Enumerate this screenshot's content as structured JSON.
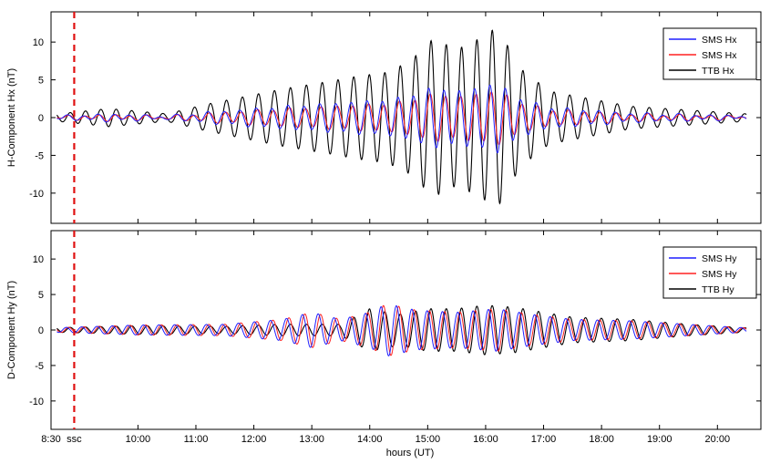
{
  "chart_data": [
    {
      "type": "line",
      "ylabel": "H-Component Hx (nT)",
      "xlabel": "",
      "xlim": [
        8.5,
        20.75
      ],
      "ylim": [
        -14,
        14
      ],
      "yticks": [
        10,
        5,
        0,
        -5,
        -10
      ],
      "grid": false,
      "legend": "top-right",
      "ssc_time": 8.9,
      "series": [
        {
          "name": "SMS Hx",
          "color": "#1f1fff",
          "scale": 0.38,
          "phase": 0.15
        },
        {
          "name": "SMS Hx",
          "color": "#ff2020",
          "scale": 0.3,
          "phase": 0.05
        },
        {
          "name": "TTB Hx",
          "color": "#000000",
          "scale": 1.0,
          "phase": 0.0
        }
      ],
      "envelope": [
        [
          8.5,
          0.4
        ],
        [
          9.5,
          1.2
        ],
        [
          10.5,
          0.5
        ],
        [
          11.2,
          1.8
        ],
        [
          12.5,
          3.8
        ],
        [
          13.3,
          4.8
        ],
        [
          13.8,
          5.5
        ],
        [
          14.3,
          6.0
        ],
        [
          14.7,
          7.5
        ],
        [
          15.1,
          10.5
        ],
        [
          15.5,
          9.0
        ],
        [
          15.9,
          10.5
        ],
        [
          16.2,
          12.0
        ],
        [
          16.6,
          6.5
        ],
        [
          17.1,
          3.5
        ],
        [
          17.8,
          2.5
        ],
        [
          18.5,
          1.5
        ],
        [
          19.5,
          1.0
        ],
        [
          20.5,
          0.5
        ]
      ]
    },
    {
      "type": "line",
      "ylabel": "D-Component Hy (nT)",
      "xlabel": "hours (UT)",
      "xlim": [
        8.5,
        20.75
      ],
      "ylim": [
        -14,
        14
      ],
      "yticks": [
        10,
        5,
        0,
        -5,
        -10
      ],
      "xticks": [
        {
          "value": 8.5,
          "label": "8:30"
        },
        {
          "value": 8.9,
          "label": "ssc"
        },
        {
          "value": 10,
          "label": "10:00"
        },
        {
          "value": 11,
          "label": "11:00"
        },
        {
          "value": 12,
          "label": "12:00"
        },
        {
          "value": 13,
          "label": "13:00"
        },
        {
          "value": 14,
          "label": "14:00"
        },
        {
          "value": 15,
          "label": "15:00"
        },
        {
          "value": 16,
          "label": "16:00"
        },
        {
          "value": 17,
          "label": "17:00"
        },
        {
          "value": 18,
          "label": "18:00"
        },
        {
          "value": 19,
          "label": "19:00"
        },
        {
          "value": 20,
          "label": "20:00"
        }
      ],
      "grid": false,
      "legend": "top-right",
      "ssc_time": 8.9,
      "series": [
        {
          "name": "SMS Hy",
          "color": "#1f1fff",
          "scale": 1.0,
          "phase": 0.25
        },
        {
          "name": "SMS Hy",
          "color": "#ff2020",
          "scale": 1.0,
          "phase": 0.1
        },
        {
          "name": "TTB Hy",
          "color": "#000000",
          "scale": 1.0,
          "phase": 0.0
        }
      ],
      "envelope_sms": [
        [
          8.5,
          0.3
        ],
        [
          10,
          0.7
        ],
        [
          11.5,
          0.8
        ],
        [
          12.5,
          1.5
        ],
        [
          13,
          2.5
        ],
        [
          13.5,
          1.5
        ],
        [
          14.0,
          2.5
        ],
        [
          14.3,
          3.7
        ],
        [
          14.8,
          2.8
        ],
        [
          15.5,
          2.5
        ],
        [
          16.2,
          3.0
        ],
        [
          16.8,
          2.2
        ],
        [
          17.5,
          1.5
        ],
        [
          18.5,
          1.3
        ],
        [
          19.5,
          0.8
        ],
        [
          20.5,
          0.3
        ]
      ],
      "envelope_ttb": [
        [
          8.5,
          0.3
        ],
        [
          10,
          0.6
        ],
        [
          11.5,
          0.5
        ],
        [
          12.5,
          0.8
        ],
        [
          13.5,
          0.8
        ],
        [
          14.0,
          3.0
        ],
        [
          14.5,
          2.2
        ],
        [
          15.0,
          3.0
        ],
        [
          15.5,
          3.0
        ],
        [
          16.0,
          3.5
        ],
        [
          16.5,
          3.2
        ],
        [
          17.0,
          2.5
        ],
        [
          17.5,
          1.8
        ],
        [
          18.5,
          1.5
        ],
        [
          19.5,
          0.8
        ],
        [
          20.5,
          0.3
        ]
      ]
    }
  ]
}
